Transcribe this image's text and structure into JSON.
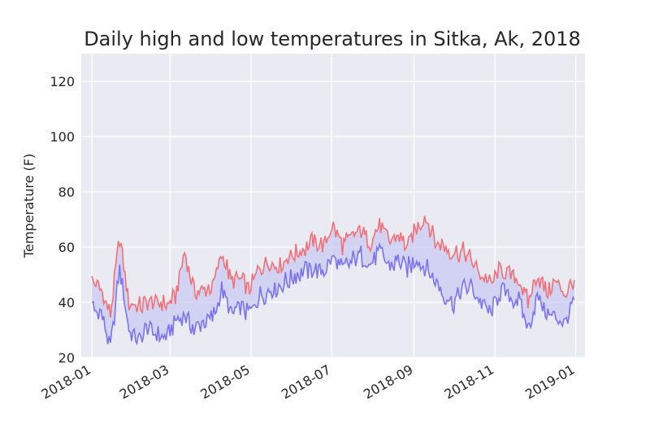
{
  "chart_data": {
    "type": "line",
    "title": "Daily high and low temperatures in Sitka, Ak, 2018",
    "xlabel": "",
    "ylabel": "Temperature (F)",
    "ylim": [
      20,
      130
    ],
    "xlim": [
      "2017-12-24",
      "2019-01-08"
    ],
    "grid": true,
    "y_ticks": [
      "20",
      "40",
      "60",
      "80",
      "100",
      "120"
    ],
    "x_ticks": [
      "2018-01",
      "2018-03",
      "2018-05",
      "2018-07",
      "2018-09",
      "2018-11",
      "2019-01"
    ],
    "x_tick_dates": [
      "2018-01-01",
      "2018-03-01",
      "2018-05-01",
      "2018-07-01",
      "2018-09-01",
      "2018-11-01",
      "2019-01-01"
    ],
    "fill_between": true,
    "colors": {
      "high": "#f07178",
      "low": "#7b73f0",
      "fill": "#c9c9f2",
      "plot_bg": "#eaeaf2",
      "grid": "#ffffff"
    },
    "x": [
      "2018-01-01",
      "2018-01-08",
      "2018-01-15",
      "2018-01-22",
      "2018-01-29",
      "2018-02-05",
      "2018-02-12",
      "2018-02-19",
      "2018-02-26",
      "2018-03-05",
      "2018-03-12",
      "2018-03-19",
      "2018-03-26",
      "2018-04-02",
      "2018-04-09",
      "2018-04-16",
      "2018-04-23",
      "2018-04-30",
      "2018-05-07",
      "2018-05-14",
      "2018-05-21",
      "2018-05-28",
      "2018-06-04",
      "2018-06-11",
      "2018-06-18",
      "2018-06-25",
      "2018-07-02",
      "2018-07-09",
      "2018-07-16",
      "2018-07-23",
      "2018-07-30",
      "2018-08-06",
      "2018-08-13",
      "2018-08-20",
      "2018-08-27",
      "2018-09-03",
      "2018-09-10",
      "2018-09-17",
      "2018-09-24",
      "2018-10-01",
      "2018-10-08",
      "2018-10-15",
      "2018-10-22",
      "2018-10-29",
      "2018-11-05",
      "2018-11-12",
      "2018-11-19",
      "2018-11-26",
      "2018-12-03",
      "2018-12-10",
      "2018-12-17",
      "2018-12-24",
      "2018-12-31"
    ],
    "series": [
      {
        "values": [
          48,
          44,
          36,
          63,
          40,
          38,
          40,
          40,
          39,
          42,
          58,
          44,
          45,
          45,
          58,
          48,
          48,
          45,
          52,
          55,
          53,
          56,
          58,
          60,
          62,
          61,
          68,
          60,
          64,
          66,
          62,
          68,
          62,
          64,
          60,
          67,
          71,
          62,
          60,
          58,
          58,
          55,
          50,
          47,
          52,
          50,
          48,
          40,
          50,
          44,
          47,
          43,
          48
        ]
      },
      {
        "values": [
          38,
          36,
          23,
          52,
          30,
          26,
          31,
          28,
          27,
          33,
          36,
          30,
          33,
          34,
          44,
          36,
          38,
          36,
          42,
          44,
          45,
          48,
          50,
          52,
          52,
          51,
          56,
          52,
          55,
          57,
          54,
          58,
          53,
          55,
          52,
          56,
          52,
          48,
          42,
          40,
          46,
          45,
          40,
          36,
          44,
          42,
          40,
          31,
          42,
          36,
          34,
          33,
          41
        ]
      }
    ]
  }
}
